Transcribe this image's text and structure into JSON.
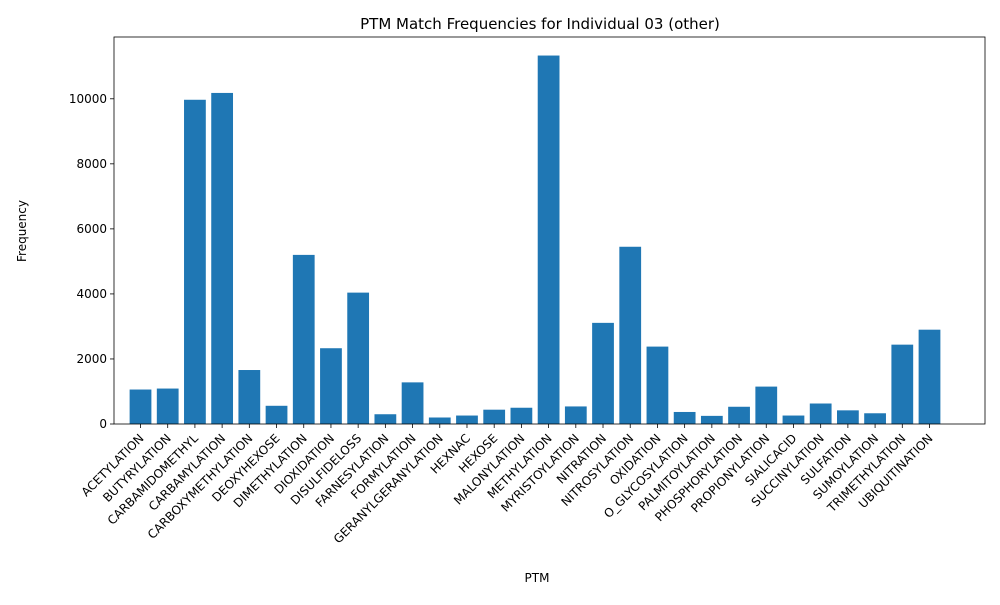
{
  "chart_data": {
    "type": "bar",
    "title": "PTM Match Frequencies for Individual 03 (other)",
    "xlabel": "PTM",
    "ylabel": "Frequency",
    "ylim": [
      0,
      11900
    ],
    "yticks": [
      0,
      2000,
      4000,
      6000,
      8000,
      10000
    ],
    "bar_color": "#1f77b4",
    "grid": false,
    "categories": [
      "ACETYLATION",
      "BUTYRYLATION",
      "CARBAMIDOMETHYL",
      "CARBAMYLATION",
      "CARBOXYMETHYLATION",
      "DEOXYHEXOSE",
      "DIMETHYLATION",
      "DIOXIDATION",
      "DISULFIDELOSS",
      "FARNESYLATION",
      "FORMYLATION",
      "GERANYLGERANYLATION",
      "HEXNAC",
      "HEXOSE",
      "MALONYLATION",
      "METHYLATION",
      "MYRISTOYLATION",
      "NITRATION",
      "NITROSYLATION",
      "OXIDATION",
      "O_GLYCOSYLATION",
      "PALMITOYLATION",
      "PHOSPHORYLATION",
      "PROPIONYLATION",
      "SIALICACID",
      "SUCCINYLATION",
      "SULFATION",
      "SUMOYLATION",
      "TRIMETHYLATION",
      "UBIQUITINATION"
    ],
    "values": [
      1060,
      1090,
      9970,
      10180,
      1660,
      560,
      5200,
      2330,
      4040,
      300,
      1280,
      200,
      260,
      440,
      500,
      11330,
      540,
      3110,
      5450,
      2380,
      370,
      250,
      530,
      1150,
      260,
      630,
      420,
      330,
      2440,
      2900
    ]
  }
}
